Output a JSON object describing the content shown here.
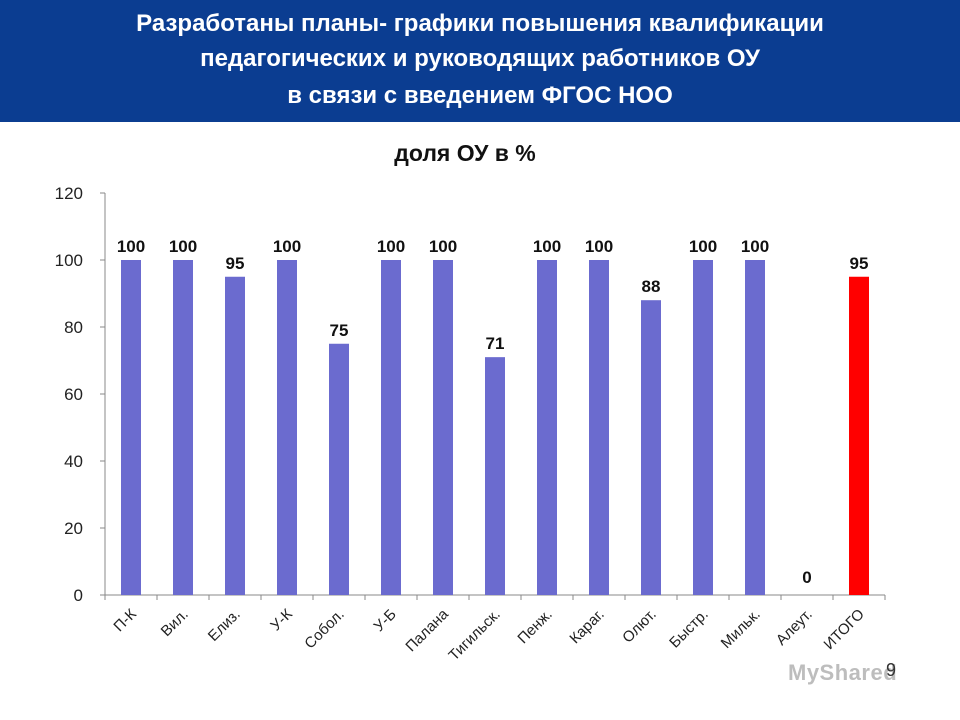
{
  "header": {
    "line1": "Разработаны планы- графики повышения квалификации",
    "line2": "педагогических и руководящих работников ОУ",
    "line3": "в связи с введением ФГОС НОО",
    "background": "#0b3d91"
  },
  "chart_data": {
    "type": "bar",
    "title": "доля ОУ в %",
    "xlabel": "",
    "ylabel": "",
    "categories": [
      "П-К",
      "Вил.",
      "Елиз.",
      "У-К",
      "Собол.",
      "У-Б",
      "Палана",
      "Тигильск.",
      "Пенж.",
      "Караг.",
      "Олют.",
      "Быстр.",
      "Мильк.",
      "Алеут.",
      "ИТОГО"
    ],
    "series": [
      {
        "values": [
          100,
          100,
          95,
          100,
          75,
          100,
          100,
          71,
          100,
          100,
          88,
          100,
          100,
          0,
          95
        ]
      }
    ],
    "data_labels": [
      "100",
      "100",
      "95",
      "100",
      "75",
      "100",
      "100",
      "71",
      "100",
      "100",
      "88",
      "100",
      "100",
      "0",
      "95"
    ],
    "ylim": [
      0,
      120
    ],
    "yticks": [
      0,
      20,
      40,
      60,
      80,
      100,
      120
    ],
    "grid": false,
    "legend": "none",
    "bar_color": "#6b6bcf",
    "highlight_color": "#ff0000",
    "highlight_index": 14
  },
  "page_number": "9",
  "watermark": "MyShared"
}
